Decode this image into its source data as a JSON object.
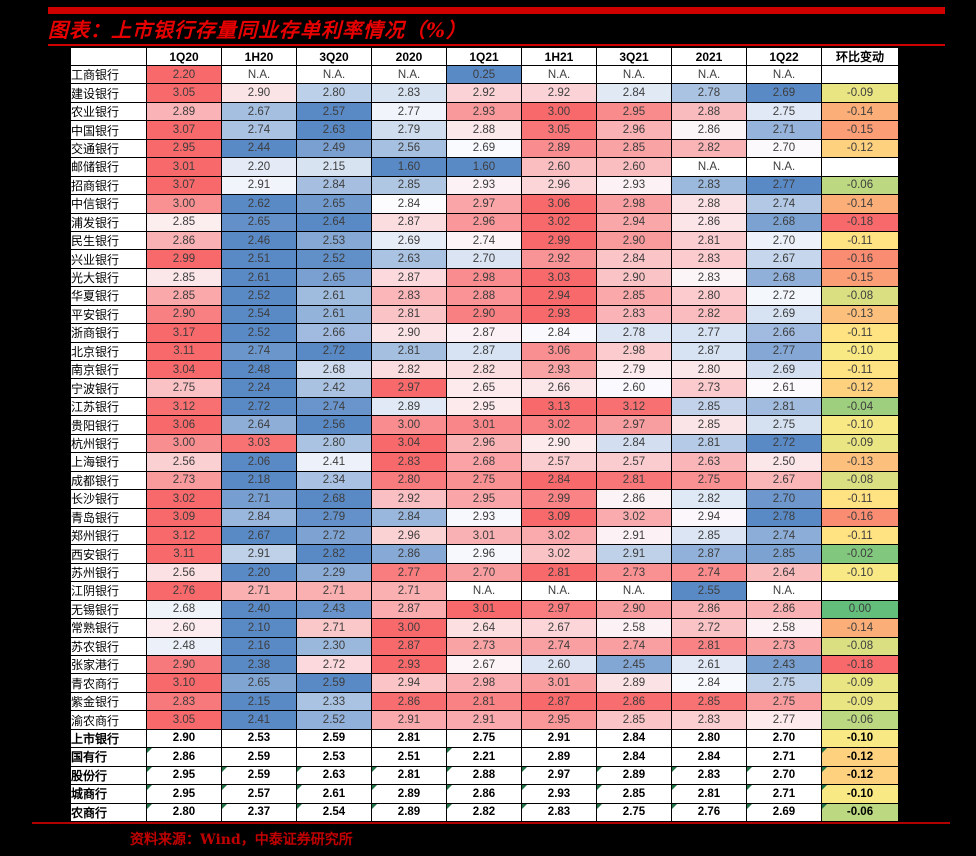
{
  "title": "图表：上市银行存量同业存单利率情况（%）",
  "source": "资料来源：Wind，中泰证券研究所",
  "colors": {
    "background": "#000000",
    "rule_red": "#cf0000",
    "title_red": "#e60000",
    "heat_high": "#F8696B",
    "heat_mid": "#FCFCFF",
    "heat_low": "#5A8AC6",
    "chg_min": "#F8696B",
    "chg_mid": "#FFEB84",
    "chg_max": "#63BE7B",
    "triangle_green": "#217346"
  },
  "chart_data": {
    "type": "heatmap",
    "title": "上市银行存量同业存单利率情况（%）",
    "columns": [
      "",
      "1Q20",
      "1H20",
      "3Q20",
      "2020",
      "1Q21",
      "1H21",
      "3Q21",
      "2021",
      "1Q22",
      "环比变动"
    ],
    "heat_scale": {
      "per_row": true,
      "high_color": "#F8696B",
      "mid_color": "#FCFCFF",
      "low_color": "#5A8AC6"
    },
    "chg_scale": {
      "min": -0.18,
      "mid": -0.105,
      "max": 0.0,
      "min_color": "#F8696B",
      "mid_color": "#FFEB84",
      "max_color": "#63BE7B"
    },
    "rows": [
      {
        "name": "工商银行",
        "values": [
          "2.20",
          "N.A.",
          "N.A.",
          "N.A.",
          "0.25",
          "N.A.",
          "N.A.",
          "N.A.",
          "N.A."
        ],
        "chg": ""
      },
      {
        "name": "建设银行",
        "values": [
          "3.05",
          "2.90",
          "2.80",
          "2.83",
          "2.92",
          "2.92",
          "2.84",
          "2.78",
          "2.69"
        ],
        "chg": "-0.09"
      },
      {
        "name": "农业银行",
        "values": [
          "2.89",
          "2.67",
          "2.57",
          "2.77",
          "2.93",
          "3.00",
          "2.95",
          "2.88",
          "2.75"
        ],
        "chg": "-0.14"
      },
      {
        "name": "中国银行",
        "values": [
          "3.07",
          "2.74",
          "2.63",
          "2.79",
          "2.88",
          "3.05",
          "2.96",
          "2.86",
          "2.71"
        ],
        "chg": "-0.15"
      },
      {
        "name": "交通银行",
        "values": [
          "2.95",
          "2.44",
          "2.49",
          "2.56",
          "2.69",
          "2.89",
          "2.85",
          "2.82",
          "2.70"
        ],
        "chg": "-0.12"
      },
      {
        "name": "邮储银行",
        "values": [
          "3.01",
          "2.20",
          "2.15",
          "1.60",
          "1.60",
          "2.60",
          "2.60",
          "N.A.",
          "N.A."
        ],
        "chg": ""
      },
      {
        "name": "招商银行",
        "values": [
          "3.07",
          "2.91",
          "2.84",
          "2.85",
          "2.93",
          "2.96",
          "2.93",
          "2.83",
          "2.77"
        ],
        "chg": "-0.06"
      },
      {
        "name": "中信银行",
        "values": [
          "3.00",
          "2.62",
          "2.65",
          "2.84",
          "2.97",
          "3.06",
          "2.98",
          "2.88",
          "2.74"
        ],
        "chg": "-0.14"
      },
      {
        "name": "浦发银行",
        "values": [
          "2.85",
          "2.65",
          "2.64",
          "2.87",
          "2.96",
          "3.02",
          "2.94",
          "2.86",
          "2.68"
        ],
        "chg": "-0.18"
      },
      {
        "name": "民生银行",
        "values": [
          "2.86",
          "2.46",
          "2.53",
          "2.69",
          "2.74",
          "2.99",
          "2.90",
          "2.81",
          "2.70"
        ],
        "chg": "-0.11"
      },
      {
        "name": "兴业银行",
        "values": [
          "2.99",
          "2.51",
          "2.52",
          "2.63",
          "2.70",
          "2.92",
          "2.84",
          "2.83",
          "2.67"
        ],
        "chg": "-0.16"
      },
      {
        "name": "光大银行",
        "values": [
          "2.85",
          "2.61",
          "2.65",
          "2.87",
          "2.98",
          "3.03",
          "2.90",
          "2.83",
          "2.68"
        ],
        "chg": "-0.15"
      },
      {
        "name": "华夏银行",
        "values": [
          "2.85",
          "2.52",
          "2.61",
          "2.83",
          "2.88",
          "2.94",
          "2.85",
          "2.80",
          "2.72"
        ],
        "chg": "-0.08"
      },
      {
        "name": "平安银行",
        "values": [
          "2.90",
          "2.54",
          "2.61",
          "2.81",
          "2.90",
          "2.93",
          "2.83",
          "2.82",
          "2.69"
        ],
        "chg": "-0.13"
      },
      {
        "name": "浙商银行",
        "values": [
          "3.17",
          "2.52",
          "2.66",
          "2.90",
          "2.87",
          "2.84",
          "2.78",
          "2.77",
          "2.66"
        ],
        "chg": "-0.11"
      },
      {
        "name": "北京银行",
        "values": [
          "3.11",
          "2.74",
          "2.72",
          "2.81",
          "2.87",
          "3.06",
          "2.98",
          "2.87",
          "2.77"
        ],
        "chg": "-0.10"
      },
      {
        "name": "南京银行",
        "values": [
          "3.04",
          "2.48",
          "2.68",
          "2.82",
          "2.82",
          "2.93",
          "2.79",
          "2.80",
          "2.69"
        ],
        "chg": "-0.11"
      },
      {
        "name": "宁波银行",
        "values": [
          "2.75",
          "2.24",
          "2.42",
          "2.97",
          "2.65",
          "2.66",
          "2.60",
          "2.73",
          "2.61"
        ],
        "chg": "-0.12"
      },
      {
        "name": "江苏银行",
        "values": [
          "3.12",
          "2.72",
          "2.74",
          "2.89",
          "2.95",
          "3.13",
          "3.12",
          "2.85",
          "2.81"
        ],
        "chg": "-0.04"
      },
      {
        "name": "贵阳银行",
        "values": [
          "3.06",
          "2.64",
          "2.56",
          "3.00",
          "3.01",
          "3.02",
          "2.97",
          "2.85",
          "2.75"
        ],
        "chg": "-0.10"
      },
      {
        "name": "杭州银行",
        "values": [
          "3.00",
          "3.03",
          "2.80",
          "3.04",
          "2.96",
          "2.90",
          "2.84",
          "2.81",
          "2.72"
        ],
        "chg": "-0.09"
      },
      {
        "name": "上海银行",
        "values": [
          "2.56",
          "2.06",
          "2.41",
          "2.83",
          "2.68",
          "2.57",
          "2.57",
          "2.63",
          "2.50"
        ],
        "chg": "-0.13"
      },
      {
        "name": "成都银行",
        "values": [
          "2.73",
          "2.18",
          "2.34",
          "2.80",
          "2.75",
          "2.84",
          "2.81",
          "2.75",
          "2.67"
        ],
        "chg": "-0.08"
      },
      {
        "name": "长沙银行",
        "values": [
          "3.02",
          "2.71",
          "2.68",
          "2.92",
          "2.95",
          "2.99",
          "2.86",
          "2.82",
          "2.70"
        ],
        "chg": "-0.11"
      },
      {
        "name": "青岛银行",
        "values": [
          "3.09",
          "2.84",
          "2.79",
          "2.84",
          "2.93",
          "3.09",
          "3.02",
          "2.94",
          "2.78"
        ],
        "chg": "-0.16"
      },
      {
        "name": "郑州银行",
        "values": [
          "3.12",
          "2.67",
          "2.72",
          "2.96",
          "3.01",
          "3.02",
          "2.91",
          "2.85",
          "2.74"
        ],
        "chg": "-0.11"
      },
      {
        "name": "西安银行",
        "values": [
          "3.11",
          "2.91",
          "2.82",
          "2.86",
          "2.96",
          "3.02",
          "2.91",
          "2.87",
          "2.85"
        ],
        "chg": "-0.02"
      },
      {
        "name": "苏州银行",
        "values": [
          "2.56",
          "2.20",
          "2.29",
          "2.77",
          "2.70",
          "2.81",
          "2.73",
          "2.74",
          "2.64"
        ],
        "chg": "-0.10"
      },
      {
        "name": "江阴银行",
        "values": [
          "2.76",
          "2.71",
          "2.71",
          "2.71",
          "N.A.",
          "N.A.",
          "N.A.",
          "2.55",
          "N.A."
        ],
        "chg": ""
      },
      {
        "name": "无锡银行",
        "values": [
          "2.68",
          "2.40",
          "2.43",
          "2.87",
          "3.01",
          "2.97",
          "2.90",
          "2.86",
          "2.86"
        ],
        "chg": "0.00"
      },
      {
        "name": "常熟银行",
        "values": [
          "2.60",
          "2.10",
          "2.71",
          "3.00",
          "2.64",
          "2.67",
          "2.58",
          "2.72",
          "2.58"
        ],
        "chg": "-0.14"
      },
      {
        "name": "苏农银行",
        "values": [
          "2.48",
          "2.16",
          "2.30",
          "2.87",
          "2.73",
          "2.74",
          "2.74",
          "2.81",
          "2.73"
        ],
        "chg": "-0.08"
      },
      {
        "name": "张家港行",
        "values": [
          "2.90",
          "2.38",
          "2.72",
          "2.93",
          "2.67",
          "2.60",
          "2.45",
          "2.61",
          "2.43"
        ],
        "chg": "-0.18"
      },
      {
        "name": "青农商行",
        "values": [
          "3.10",
          "2.65",
          "2.59",
          "2.94",
          "2.98",
          "3.01",
          "2.89",
          "2.84",
          "2.75"
        ],
        "chg": "-0.09"
      },
      {
        "name": "紫金银行",
        "values": [
          "2.83",
          "2.15",
          "2.33",
          "2.86",
          "2.81",
          "2.87",
          "2.86",
          "2.85",
          "2.75"
        ],
        "chg": "-0.09"
      },
      {
        "name": "渝农商行",
        "values": [
          "3.05",
          "2.41",
          "2.52",
          "2.91",
          "2.91",
          "2.95",
          "2.85",
          "2.83",
          "2.77"
        ],
        "chg": "-0.06"
      }
    ],
    "summary_rows": [
      {
        "name": "上市银行",
        "values": [
          "2.90",
          "2.53",
          "2.59",
          "2.81",
          "2.75",
          "2.91",
          "2.84",
          "2.80",
          "2.70"
        ],
        "chg": "-0.10",
        "tri": []
      },
      {
        "name": "国有行",
        "values": [
          "2.86",
          "2.59",
          "2.53",
          "2.51",
          "2.21",
          "2.89",
          "2.84",
          "2.84",
          "2.71"
        ],
        "chg": "-0.12",
        "tri": [
          0,
          4,
          9
        ]
      },
      {
        "name": "股份行",
        "values": [
          "2.95",
          "2.59",
          "2.63",
          "2.81",
          "2.88",
          "2.97",
          "2.89",
          "2.83",
          "2.70"
        ],
        "chg": "-0.12",
        "tri": [
          0,
          1,
          2,
          3,
          4,
          5,
          6,
          7,
          8,
          9
        ]
      },
      {
        "name": "城商行",
        "values": [
          "2.95",
          "2.57",
          "2.61",
          "2.89",
          "2.86",
          "2.93",
          "2.85",
          "2.81",
          "2.71"
        ],
        "chg": "-0.10",
        "tri": [
          0,
          1,
          2,
          3,
          4,
          5,
          6,
          7,
          8,
          9
        ]
      },
      {
        "name": "农商行",
        "values": [
          "2.80",
          "2.37",
          "2.54",
          "2.89",
          "2.82",
          "2.83",
          "2.75",
          "2.76",
          "2.69"
        ],
        "chg": "-0.06",
        "tri": [
          0,
          1,
          2,
          3,
          4,
          5,
          6,
          7,
          8,
          9
        ]
      }
    ]
  }
}
